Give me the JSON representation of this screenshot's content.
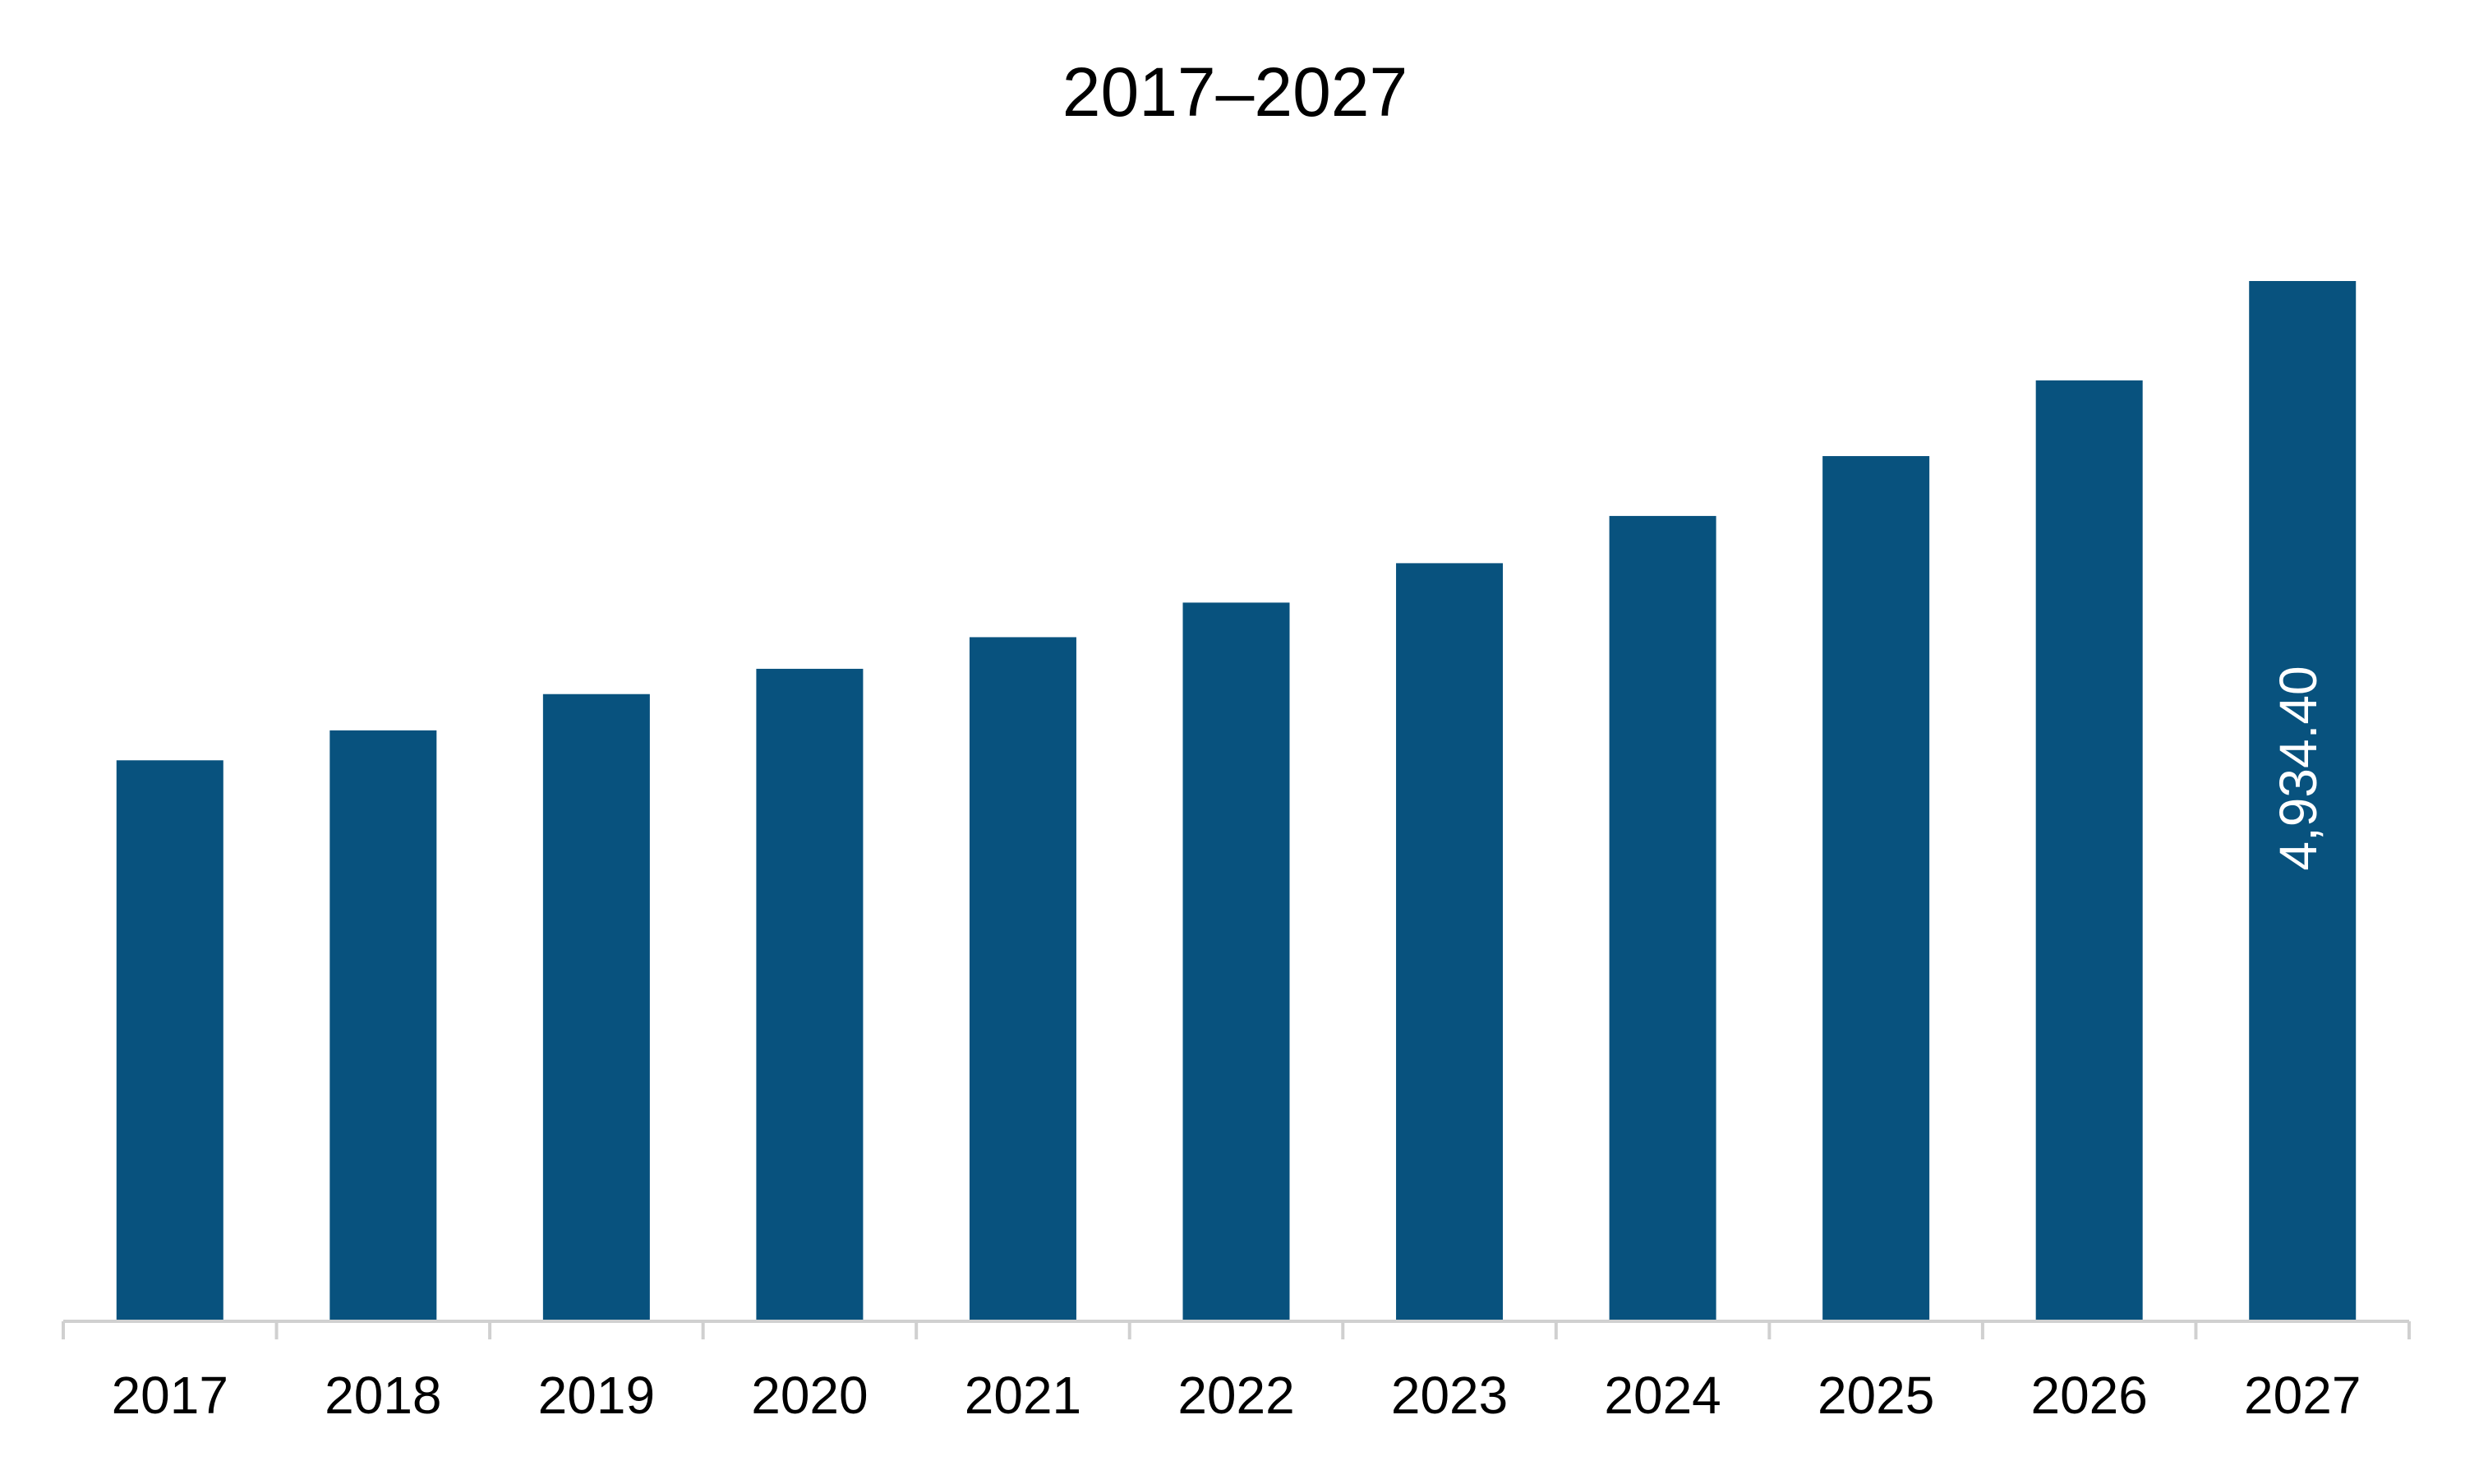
{
  "chart_data": {
    "type": "bar",
    "title": "2017–2027",
    "categories": [
      "2017",
      "2018",
      "2019",
      "2020",
      "2021",
      "2022",
      "2023",
      "2024",
      "2025",
      "2026",
      "2027"
    ],
    "values": [
      2661,
      2803,
      2975,
      3095,
      3245,
      3409,
      3596,
      3820,
      4104,
      4463,
      4934.4
    ],
    "value_labels": [
      null,
      null,
      null,
      null,
      null,
      null,
      null,
      null,
      null,
      null,
      "4,934.40"
    ],
    "color": "#08527e"
  }
}
